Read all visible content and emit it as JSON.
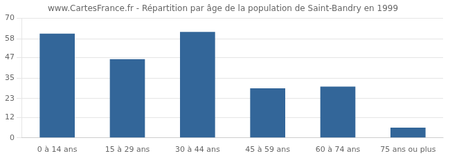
{
  "chart_data": {
    "type": "bar",
    "title": "www.CartesFrance.fr - Répartition par âge de la population de Saint-Bandry en 1999",
    "categories": [
      "0 à 14 ans",
      "15 à 29 ans",
      "30 à 44 ans",
      "45 à 59 ans",
      "60 à 74 ans",
      "75 ans ou plus"
    ],
    "values": [
      61,
      46,
      62,
      29,
      30,
      6
    ],
    "color": "#336699",
    "ylim": [
      0,
      70
    ],
    "yticks": [
      0,
      12,
      23,
      35,
      47,
      58,
      70
    ],
    "grid": true
  }
}
